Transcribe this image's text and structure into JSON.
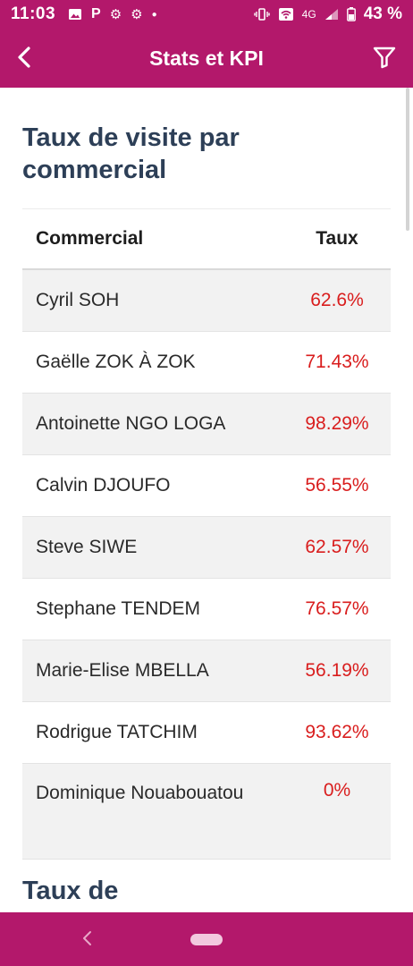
{
  "status_bar": {
    "time": "11:03",
    "left_icons": [
      "image-icon",
      "p-icon",
      "gear-icon",
      "gear-icon",
      "dot-icon"
    ],
    "network": "4G",
    "battery": "43 %"
  },
  "app_bar": {
    "title": "Stats et KPI",
    "back_icon": "chevron-left-icon",
    "filter_icon": "filter-icon"
  },
  "section": {
    "title": "Taux de visite par commercial"
  },
  "table": {
    "headers": {
      "commercial": "Commercial",
      "taux": "Taux"
    },
    "rows": [
      {
        "name": "Cyril SOH",
        "rate": "62.6%"
      },
      {
        "name": "Gaëlle ZOK À ZOK",
        "rate": "71.43%"
      },
      {
        "name": "Antoinette NGO LOGA",
        "rate": "98.29%"
      },
      {
        "name": "Calvin DJOUFO",
        "rate": "56.55%"
      },
      {
        "name": "Steve SIWE",
        "rate": "62.57%"
      },
      {
        "name": "Stephane TENDEM",
        "rate": "76.57%"
      },
      {
        "name": "Marie-Elise MBELLA",
        "rate": "56.19%"
      },
      {
        "name": "Rodrigue TATCHIM",
        "rate": "93.62%"
      },
      {
        "name": "Dominique Nouabouatou",
        "rate": "0%"
      }
    ]
  },
  "next_section": {
    "title_partial": "Taux de"
  },
  "colors": {
    "brand": "#b3186b",
    "title": "#2d3f57",
    "rate": "#d91d1d",
    "row_alt": "#f2f2f2"
  }
}
